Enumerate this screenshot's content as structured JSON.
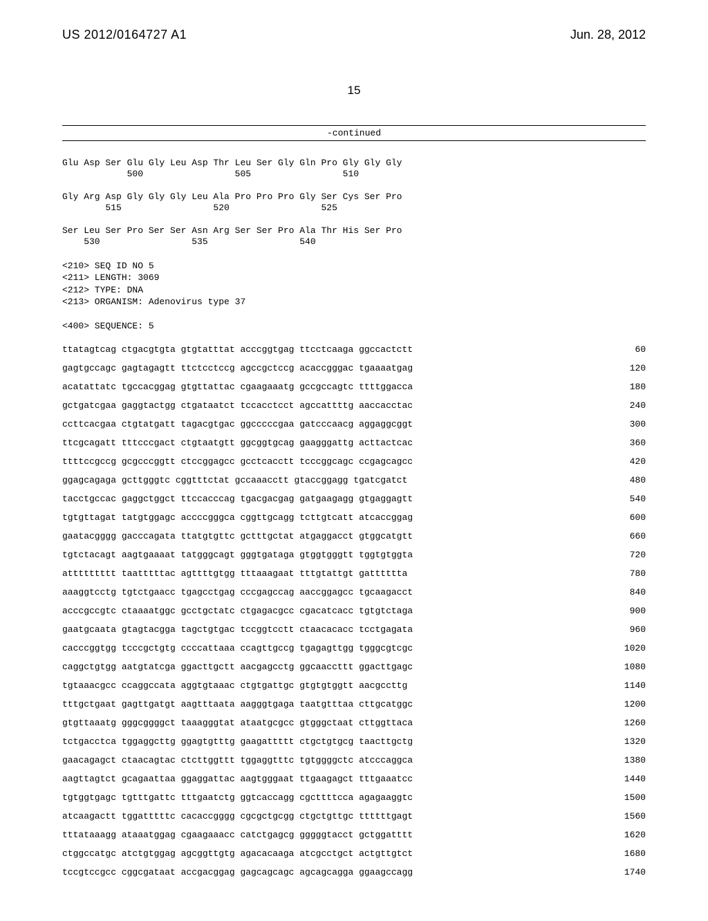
{
  "header": {
    "pub_number": "US 2012/0164727 A1",
    "pub_date": "Jun. 28, 2012",
    "page_number": "15",
    "continued_label": "-continued"
  },
  "protein_rows": [
    {
      "aa": "Glu Asp Ser Glu Gly Leu Asp Thr Leu Ser Gly Gln Pro Gly Gly Gly",
      "nums": "            500                 505                 510"
    },
    {
      "aa": "Gly Arg Asp Gly Gly Gly Leu Ala Pro Pro Pro Gly Ser Cys Ser Pro",
      "nums": "        515                 520                 525"
    },
    {
      "aa": "Ser Leu Ser Pro Ser Ser Asn Arg Ser Ser Pro Ala Thr His Ser Pro",
      "nums": "    530                 535                 540"
    }
  ],
  "meta": {
    "line1": "<210> SEQ ID NO 5",
    "line2": "<211> LENGTH: 3069",
    "line3": "<212> TYPE: DNA",
    "line4": "<213> ORGANISM: Adenovirus type 37",
    "line5": "<400> SEQUENCE: 5"
  },
  "dna_rows": [
    {
      "seq": "ttatagtcag ctgacgtgta gtgtatttat acccggtgag ttcctcaaga ggccactctt",
      "pos": "60"
    },
    {
      "seq": "gagtgccagc gagtagagtt ttctcctccg agccgctccg acaccgggac tgaaaatgag",
      "pos": "120"
    },
    {
      "seq": "acatattatc tgccacggag gtgttattac cgaagaaatg gccgccagtc ttttggacca",
      "pos": "180"
    },
    {
      "seq": "gctgatcgaa gaggtactgg ctgataatct tccacctcct agccattttg aaccacctac",
      "pos": "240"
    },
    {
      "seq": "ccttcacgaa ctgtatgatt tagacgtgac ggcccccgaa gatcccaacg aggaggcggt",
      "pos": "300"
    },
    {
      "seq": "ttcgcagatt tttcccgact ctgtaatgtt ggcggtgcag gaagggattg acttactcac",
      "pos": "360"
    },
    {
      "seq": "ttttccgccg gcgcccggtt ctccggagcc gcctcacctt tcccggcagc ccgagcagcc",
      "pos": "420"
    },
    {
      "seq": "ggagcagaga gcttgggtc cggtttctat gccaaacctt gtaccggagg tgatcgatct",
      "pos": "480"
    },
    {
      "seq": "tacctgccac gaggctggct ttccacccag tgacgacgag gatgaagagg gtgaggagtt",
      "pos": "540"
    },
    {
      "seq": "tgtgttagat tatgtggagc accccgggca cggttgcagg tcttgtcatt atcaccggag",
      "pos": "600"
    },
    {
      "seq": "gaatacgggg gacccagata ttatgtgttc gctttgctat atgaggacct gtggcatgtt",
      "pos": "660"
    },
    {
      "seq": "tgtctacagt aagtgaaaat tatgggcagt gggtgataga gtggtgggtt tggtgtggta",
      "pos": "720"
    },
    {
      "seq": "attttttttt taatttttac agttttgtgg tttaaagaat tttgtattgt gatttttta",
      "pos": "780"
    },
    {
      "seq": "aaaggtcctg tgtctgaacc tgagcctgag cccgagccag aaccggagcc tgcaagacct",
      "pos": "840"
    },
    {
      "seq": "acccgccgtc ctaaaatggc gcctgctatc ctgagacgcc cgacatcacc tgtgtctaga",
      "pos": "900"
    },
    {
      "seq": "gaatgcaata gtagtacgga tagctgtgac tccggtcctt ctaacacacc tcctgagata",
      "pos": "960"
    },
    {
      "seq": "cacccggtgg tcccgctgtg ccccattaaa ccagttgccg tgagagttgg tgggcgtcgc",
      "pos": "1020"
    },
    {
      "seq": "caggctgtgg aatgtatcga ggacttgctt aacgagcctg ggcaaccttt ggacttgagc",
      "pos": "1080"
    },
    {
      "seq": "tgtaaacgcc ccaggccata aggtgtaaac ctgtgattgc gtgtgtggtt aacgccttg",
      "pos": "1140"
    },
    {
      "seq": "tttgctgaat gagttgatgt aagtttaata aagggtgaga taatgtttaa cttgcatggc",
      "pos": "1200"
    },
    {
      "seq": "gtgttaaatg gggcggggct taaagggtat ataatgcgcc gtgggctaat cttggttaca",
      "pos": "1260"
    },
    {
      "seq": "tctgacctca tggaggcttg ggagtgtttg gaagattttt ctgctgtgcg taacttgctg",
      "pos": "1320"
    },
    {
      "seq": "gaacagagct ctaacagtac ctcttggttt tggaggtttc tgtggggctc atcccaggca",
      "pos": "1380"
    },
    {
      "seq": "aagttagtct gcagaattaa ggaggattac aagtgggaat ttgaagagct tttgaaatcc",
      "pos": "1440"
    },
    {
      "seq": "tgtggtgagc tgtttgattc tttgaatctg ggtcaccagg cgcttttcca agagaaggtc",
      "pos": "1500"
    },
    {
      "seq": "atcaagactt tggatttttc cacaccgggg cgcgctgcgg ctgctgttgc ttttttgagt",
      "pos": "1560"
    },
    {
      "seq": "tttataaagg ataaatggag cgaagaaacc catctgagcg gggggtacct gctggatttt",
      "pos": "1620"
    },
    {
      "seq": "ctggccatgc atctgtggag agcggttgtg agacacaaga atcgcctgct actgttgtct",
      "pos": "1680"
    },
    {
      "seq": "tccgtccgcc cggcgataat accgacggag gagcagcagc agcagcagga ggaagccagg",
      "pos": "1740"
    }
  ]
}
